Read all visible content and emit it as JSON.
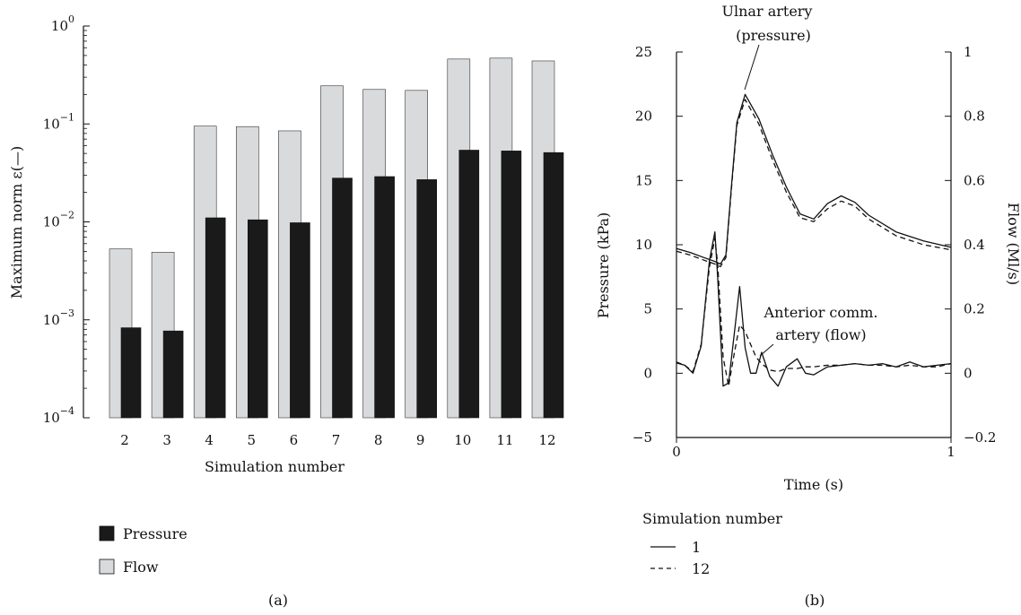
{
  "chart_data": [
    {
      "panel": "(a)",
      "type": "bar",
      "ylabel": "Maximum norm ε(—)",
      "xlabel": "Simulation number",
      "yscale": "log",
      "ylim": [
        0.0001,
        1
      ],
      "y_ticks": [
        {
          "base": "10",
          "exp": "0"
        },
        {
          "base": "10",
          "exp": "−1"
        },
        {
          "base": "10",
          "exp": "−2"
        },
        {
          "base": "10",
          "exp": "−3"
        },
        {
          "base": "10",
          "exp": "−4"
        }
      ],
      "categories": [
        "2",
        "3",
        "4",
        "5",
        "6",
        "7",
        "8",
        "9",
        "10",
        "11",
        "12"
      ],
      "series": [
        {
          "name": "Flow",
          "color": "#d9dadc",
          "values": [
            0.0053,
            0.0049,
            0.095,
            0.094,
            0.085,
            0.245,
            0.225,
            0.22,
            0.46,
            0.47,
            0.44
          ]
        },
        {
          "name": "Pressure",
          "color": "#1a1a1a",
          "values": [
            0.00083,
            0.00077,
            0.011,
            0.0105,
            0.0098,
            0.028,
            0.029,
            0.027,
            0.054,
            0.053,
            0.051
          ]
        }
      ],
      "legend": [
        {
          "label": "Pressure",
          "color": "#1a1a1a"
        },
        {
          "label": "Flow",
          "color": "#d9dadc"
        }
      ],
      "legend_position": "bottom-left"
    },
    {
      "panel": "(b)",
      "type": "line",
      "xlabel": "Time (s)",
      "ylabel": "Pressure (kPa)",
      "y2label": "Flow (Ml/s)",
      "xlim": [
        0,
        1
      ],
      "ylim": [
        -5,
        25
      ],
      "y2lim": [
        -0.2,
        1
      ],
      "x_ticks": [
        "0",
        "1"
      ],
      "y_ticks": [
        "25",
        "20",
        "15",
        "10",
        "5",
        "0",
        "−5"
      ],
      "y2_ticks": [
        "1",
        "0.8",
        "0.6",
        "0.4",
        "0.2",
        "0",
        "−0.2"
      ],
      "annotations": [
        {
          "text_lines": [
            "Ulnar artery",
            "(pressure)"
          ]
        },
        {
          "text_lines": [
            "Anterior comm.",
            "artery (flow)"
          ]
        }
      ],
      "legend_title": "Simulation number",
      "legend": [
        {
          "label": "1",
          "style": "solid"
        },
        {
          "label": "12",
          "style": "dashed"
        }
      ],
      "series": [
        {
          "name": "1",
          "quantity": "pressure",
          "axis": "left",
          "style": "solid",
          "x": [
            0,
            0.05,
            0.1,
            0.14,
            0.16,
            0.18,
            0.2,
            0.22,
            0.25,
            0.3,
            0.35,
            0.4,
            0.45,
            0.5,
            0.55,
            0.6,
            0.65,
            0.7,
            0.8,
            0.9,
            1.0
          ],
          "y": [
            9.7,
            9.4,
            9.0,
            8.7,
            8.5,
            9.2,
            14.5,
            19.5,
            21.7,
            19.8,
            17.0,
            14.5,
            12.4,
            12.0,
            13.2,
            13.8,
            13.3,
            12.3,
            11.0,
            10.3,
            9.8
          ]
        },
        {
          "name": "12",
          "quantity": "pressure",
          "axis": "left",
          "style": "dashed",
          "x": [
            0,
            0.05,
            0.1,
            0.14,
            0.16,
            0.18,
            0.2,
            0.22,
            0.25,
            0.3,
            0.35,
            0.4,
            0.45,
            0.5,
            0.55,
            0.6,
            0.65,
            0.7,
            0.8,
            0.9,
            1.0
          ],
          "y": [
            9.5,
            9.2,
            8.8,
            8.5,
            8.3,
            9.0,
            14.3,
            19.3,
            21.3,
            19.4,
            16.6,
            14.1,
            12.1,
            11.8,
            12.8,
            13.4,
            13.0,
            12.0,
            10.7,
            10.0,
            9.6
          ]
        },
        {
          "name": "1",
          "quantity": "flow",
          "axis": "right",
          "style": "solid",
          "x": [
            0,
            0.03,
            0.06,
            0.09,
            0.12,
            0.14,
            0.15,
            0.17,
            0.19,
            0.21,
            0.23,
            0.25,
            0.27,
            0.29,
            0.31,
            0.34,
            0.37,
            0.4,
            0.44,
            0.47,
            0.5,
            0.55,
            0.6,
            0.65,
            0.7,
            0.75,
            0.8,
            0.85,
            0.9,
            0.95,
            1.0
          ],
          "y": [
            0.032,
            0.025,
            0.0,
            0.085,
            0.35,
            0.44,
            0.3,
            -0.04,
            -0.03,
            0.12,
            0.27,
            0.08,
            0.0,
            0.0,
            0.065,
            -0.01,
            -0.04,
            0.02,
            0.045,
            0.0,
            -0.005,
            0.02,
            0.025,
            0.03,
            0.025,
            0.03,
            0.02,
            0.035,
            0.02,
            0.025,
            0.03
          ]
        },
        {
          "name": "12",
          "quantity": "flow",
          "axis": "right",
          "style": "dashed",
          "x": [
            0,
            0.03,
            0.06,
            0.09,
            0.12,
            0.14,
            0.15,
            0.17,
            0.19,
            0.21,
            0.23,
            0.25,
            0.27,
            0.29,
            0.31,
            0.34,
            0.37,
            0.4,
            0.44,
            0.47,
            0.5,
            0.55,
            0.6,
            0.65,
            0.7,
            0.75,
            0.8,
            0.85,
            0.9,
            0.95,
            1.0
          ],
          "y": [
            0.035,
            0.025,
            0.005,
            0.09,
            0.33,
            0.42,
            0.34,
            0.05,
            -0.04,
            0.06,
            0.15,
            0.13,
            0.09,
            0.05,
            0.03,
            0.01,
            0.005,
            0.015,
            0.015,
            0.02,
            0.02,
            0.025,
            0.025,
            0.03,
            0.025,
            0.025,
            0.02,
            0.025,
            0.02,
            0.02,
            0.03
          ]
        }
      ]
    }
  ]
}
